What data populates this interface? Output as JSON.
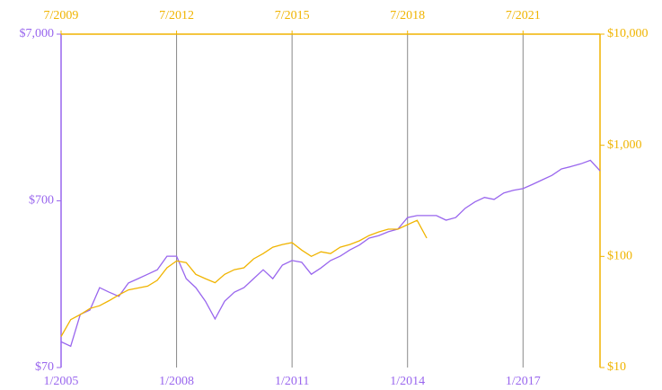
{
  "chart_data": {
    "type": "line",
    "log_scale": true,
    "grid": true,
    "xlim": [
      "1/2005",
      "1/2019"
    ],
    "xticks": [
      "1/2005",
      "1/2008",
      "1/2011",
      "1/2014",
      "1/2017"
    ],
    "x2lim": [
      "7/2009",
      "7/2023"
    ],
    "x2ticks": [
      "7/2009",
      "7/2012",
      "7/2015",
      "7/2018",
      "7/2021"
    ],
    "ylim": [
      70,
      7000
    ],
    "yticks": [
      {
        "value": 70,
        "label": "$70"
      },
      {
        "value": 700,
        "label": "$700"
      },
      {
        "value": 7000,
        "label": "$7,000"
      }
    ],
    "y2lim": [
      10,
      10000
    ],
    "y2ticks": [
      {
        "value": 10,
        "label": "$10"
      },
      {
        "value": 100,
        "label": "$100"
      },
      {
        "value": 1000,
        "label": "$1,000"
      },
      {
        "value": 10000,
        "label": "$10,000"
      }
    ],
    "series": [
      {
        "color": "#9966ee",
        "axis": "y",
        "xaxis": "x",
        "x": [
          "1/2005",
          "4/2005",
          "7/2005",
          "10/2005",
          "1/2006",
          "4/2006",
          "7/2006",
          "10/2006",
          "1/2007",
          "4/2007",
          "7/2007",
          "10/2007",
          "1/2008",
          "4/2008",
          "7/2008",
          "10/2008",
          "1/2009",
          "4/2009",
          "7/2009",
          "10/2009",
          "1/2010",
          "4/2010",
          "7/2010",
          "10/2010",
          "1/2011",
          "4/2011",
          "7/2011",
          "10/2011",
          "1/2012",
          "4/2012",
          "7/2012",
          "10/2012",
          "1/2013",
          "4/2013",
          "7/2013",
          "10/2013",
          "1/2014",
          "4/2014",
          "7/2014",
          "10/2014",
          "1/2015",
          "4/2015",
          "7/2015",
          "10/2015",
          "1/2016",
          "4/2016",
          "7/2016",
          "10/2016",
          "1/2017",
          "4/2017",
          "7/2017",
          "10/2017",
          "1/2018",
          "4/2018",
          "7/2018",
          "10/2018",
          "1/2019"
        ],
        "values": [
          100,
          94,
          146,
          155,
          211,
          198,
          187,
          225,
          239,
          254,
          270,
          326,
          326,
          239,
          211,
          175,
          137,
          175,
          198,
          211,
          239,
          270,
          239,
          288,
          307,
          300,
          254,
          277,
          307,
          326,
          355,
          380,
          418,
          433,
          457,
          474,
          556,
          571,
          571,
          571,
          536,
          556,
          632,
          690,
          734,
          714,
          781,
          810,
          829,
          880,
          936,
          995,
          1087,
          1125,
          1168,
          1225,
          1060
        ]
      },
      {
        "color": "#f0b400",
        "axis": "y2",
        "xaxis": "x2",
        "x": [
          "7/2009",
          "10/2009",
          "1/2010",
          "4/2010",
          "7/2010",
          "10/2010",
          "1/2011",
          "4/2011",
          "7/2011",
          "10/2011",
          "1/2012",
          "4/2012",
          "7/2012",
          "10/2012",
          "1/2013",
          "4/2013",
          "7/2013",
          "10/2013",
          "1/2014",
          "4/2014",
          "7/2014",
          "10/2014",
          "1/2015",
          "4/2015",
          "7/2015",
          "10/2015",
          "1/2016",
          "4/2016",
          "7/2016",
          "10/2016",
          "1/2017",
          "4/2017",
          "7/2017",
          "10/2017",
          "1/2018",
          "4/2018",
          "7/2018",
          "10/2018",
          "1/2019"
        ],
        "values": [
          19,
          27,
          30,
          34,
          36,
          40,
          45,
          50,
          52,
          54,
          61,
          79,
          91,
          88,
          69,
          63,
          58,
          69,
          76,
          79,
          95,
          106,
          121,
          128,
          133,
          114,
          100,
          110,
          106,
          121,
          128,
          138,
          154,
          166,
          176,
          176,
          193,
          211,
          146
        ]
      }
    ]
  }
}
